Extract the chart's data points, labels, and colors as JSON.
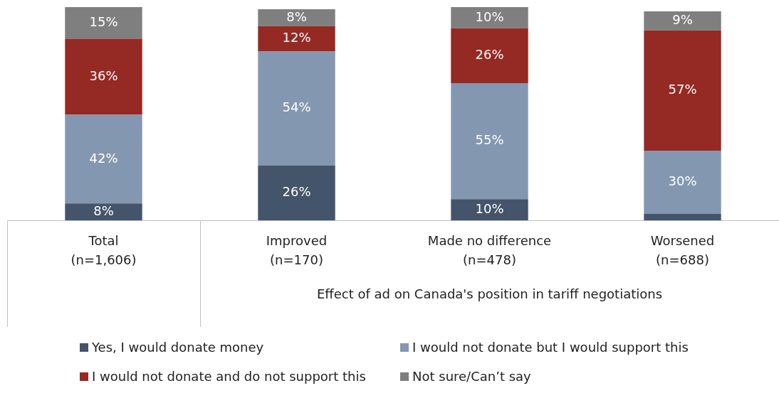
{
  "chart_data": {
    "type": "bar",
    "stacked": true,
    "xlabel": "Effect of ad on Canada's position in tariff negotiations",
    "categories": [
      "Total\n(n=1,606)",
      "Improved\n(n=170)",
      "Made no difference\n(n=478)",
      "Worsened\n(n=688)"
    ],
    "series": [
      {
        "name": "Yes, I would donate money",
        "color": "#44546a",
        "values": [
          8,
          26,
          10,
          3
        ],
        "value_labels": [
          "8%",
          "26%",
          "10%",
          null
        ]
      },
      {
        "name": "I would not donate but I would support this",
        "color": "#8497b0",
        "values": [
          42,
          54,
          55,
          30
        ],
        "value_labels": [
          "42%",
          "54%",
          "55%",
          "30%"
        ]
      },
      {
        "name": "I would not donate and do not support this",
        "color": "#952923",
        "values": [
          36,
          12,
          26,
          57
        ],
        "value_labels": [
          "36%",
          "12%",
          "26%",
          "57%"
        ]
      },
      {
        "name": "Not sure/Can’t say",
        "color": "#7f7f7f",
        "values": [
          15,
          8,
          10,
          9
        ],
        "value_labels": [
          "15%",
          "8%",
          "10%",
          "9%"
        ]
      }
    ],
    "legend": "bottom"
  }
}
